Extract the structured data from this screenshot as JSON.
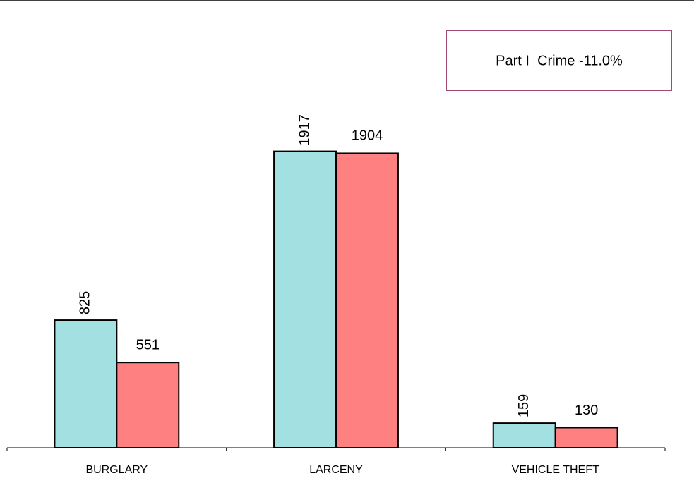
{
  "chart_data": {
    "type": "bar",
    "annotation": "Part I  Crime -11.0%",
    "categories": [
      "BURGLARY",
      "LARCENY",
      "VEHICLE THEFT"
    ],
    "series": [
      {
        "color": "#a2e0e1",
        "values": [
          825,
          1917,
          159
        ]
      },
      {
        "color": "#ff8080",
        "values": [
          551,
          1904,
          130
        ]
      }
    ],
    "ylim": [
      0,
      2850
    ]
  }
}
